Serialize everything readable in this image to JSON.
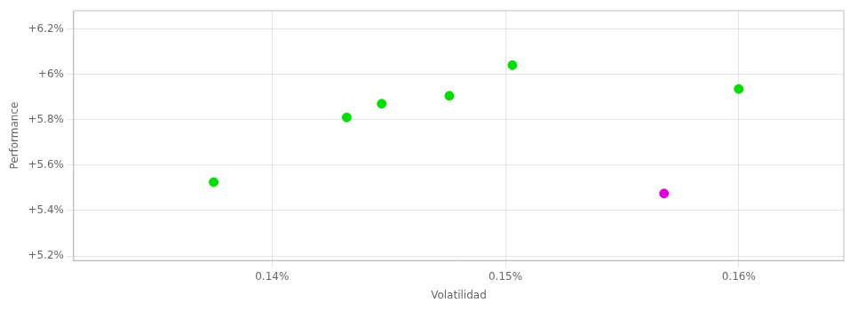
{
  "chart_data": {
    "type": "scatter",
    "xlabel": "Volatilidad",
    "ylabel": "Performance",
    "xlim": [
      0.1315,
      0.1645
    ],
    "ylim": [
      5.18,
      6.28
    ],
    "xticks": [
      {
        "value": 0.14,
        "label": "0.14%"
      },
      {
        "value": 0.15,
        "label": "0.15%"
      },
      {
        "value": 0.16,
        "label": "0.16%"
      }
    ],
    "yticks": [
      {
        "value": 5.2,
        "label": "+5.2%"
      },
      {
        "value": 5.4,
        "label": "+5.4%"
      },
      {
        "value": 5.6,
        "label": "+5.6%"
      },
      {
        "value": 5.8,
        "label": "+5.8%"
      },
      {
        "value": 6.0,
        "label": "+6%"
      },
      {
        "value": 6.2,
        "label": "+6.2%"
      }
    ],
    "grid": true,
    "series": [
      {
        "color": "#00dd00",
        "x": [
          0.1375,
          0.1432,
          0.1447,
          0.1476,
          0.1503,
          0.16
        ],
        "values": [
          5.525,
          5.81,
          5.87,
          5.905,
          6.04,
          5.935
        ]
      },
      {
        "color": "#dd00dd",
        "x": [
          0.1568
        ],
        "values": [
          5.475
        ]
      }
    ]
  }
}
